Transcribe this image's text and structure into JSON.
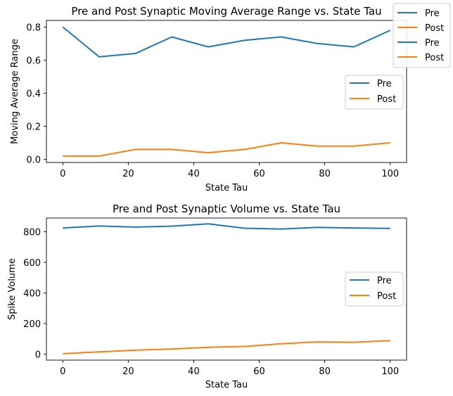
{
  "chart_data": [
    {
      "type": "line",
      "title": "Pre and Post Synaptic Moving Average Range vs. State Tau",
      "xlabel": "State Tau",
      "ylabel": "Moving Average Range",
      "xlim": [
        -5,
        105
      ],
      "ylim": [
        -0.019,
        0.84
      ],
      "xticks": [
        0,
        20,
        40,
        60,
        80,
        100
      ],
      "yticks": [
        0.0,
        0.2,
        0.4,
        0.6,
        0.8
      ],
      "ytick_labels": [
        "0.0",
        "0.2",
        "0.4",
        "0.6",
        "0.8"
      ],
      "x": [
        0,
        11.1,
        22.2,
        33.3,
        44.4,
        55.6,
        66.7,
        77.8,
        88.9,
        100
      ],
      "series": [
        {
          "name": "Pre",
          "color": "#1f77b4",
          "values": [
            0.8,
            0.62,
            0.64,
            0.74,
            0.68,
            0.72,
            0.74,
            0.7,
            0.68,
            0.78
          ]
        },
        {
          "name": "Post",
          "color": "#ff7f0e",
          "values": [
            0.02,
            0.02,
            0.06,
            0.06,
            0.04,
            0.06,
            0.1,
            0.08,
            0.08,
            0.1
          ]
        }
      ],
      "legend": [
        "Pre",
        "Post"
      ],
      "legend_position": "center-right",
      "grid": false
    },
    {
      "type": "line",
      "title": "Pre and Post Synaptic Volume vs. State Tau",
      "xlabel": "State Tau",
      "ylabel": "Spike Volume",
      "xlim": [
        -5,
        105
      ],
      "ylim": [
        -40,
        890
      ],
      "xticks": [
        0,
        20,
        40,
        60,
        80,
        100
      ],
      "yticks": [
        0,
        200,
        400,
        600,
        800
      ],
      "ytick_labels": [
        "0",
        "200",
        "400",
        "600",
        "800"
      ],
      "x": [
        0,
        11.1,
        22.2,
        33.3,
        44.4,
        55.6,
        66.7,
        77.8,
        88.9,
        100
      ],
      "series": [
        {
          "name": "Pre",
          "color": "#1f77b4",
          "values": [
            825,
            838,
            831,
            837,
            852,
            823,
            818,
            829,
            825,
            822
          ]
        },
        {
          "name": "Post",
          "color": "#ff7f0e",
          "values": [
            2,
            14,
            25,
            33,
            44,
            50,
            67,
            80,
            77,
            88
          ]
        }
      ],
      "legend": [
        "Pre",
        "Post"
      ],
      "legend_position": "center-right",
      "grid": false
    }
  ],
  "figure_legend": {
    "entries": [
      {
        "label": "Pre",
        "color": "#1f77b4"
      },
      {
        "label": "Post",
        "color": "#ff7f0e"
      },
      {
        "label": "Pre",
        "color": "#1f77b4"
      },
      {
        "label": "Post",
        "color": "#ff7f0e"
      }
    ],
    "position": "top-right"
  }
}
